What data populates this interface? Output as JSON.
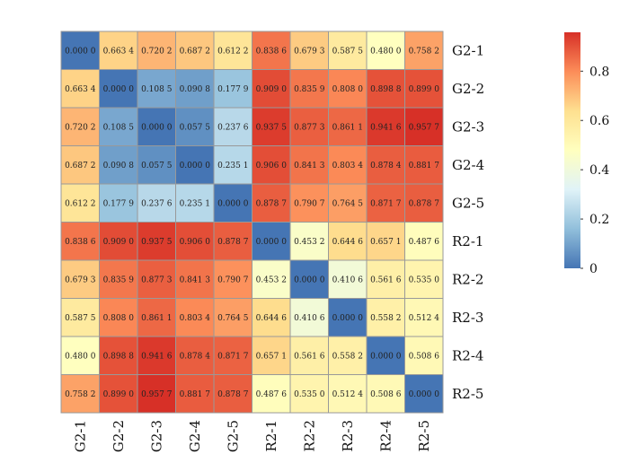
{
  "chart_data": {
    "type": "heatmap",
    "title": "",
    "xlabel": "",
    "ylabel": "",
    "rows": [
      "G2-1",
      "G2-2",
      "G2-3",
      "G2-4",
      "G2-5",
      "R2-1",
      "R2-2",
      "R2-3",
      "R2-4",
      "R2-5"
    ],
    "columns": [
      "G2-1",
      "G2-2",
      "G2-3",
      "G2-4",
      "G2-5",
      "R2-1",
      "R2-2",
      "R2-3",
      "R2-4",
      "R2-5"
    ],
    "values": [
      [
        0.0,
        0.6634,
        0.7202,
        0.6872,
        0.6122,
        0.8386,
        0.6793,
        0.5875,
        0.48,
        0.7582
      ],
      [
        0.6634,
        0.0,
        0.1085,
        0.0908,
        0.1779,
        0.909,
        0.8359,
        0.808,
        0.8988,
        0.899
      ],
      [
        0.7202,
        0.1085,
        0.0,
        0.0575,
        0.2376,
        0.9375,
        0.8773,
        0.8611,
        0.9416,
        0.9577
      ],
      [
        0.6872,
        0.0908,
        0.0575,
        0.0,
        0.2351,
        0.906,
        0.8413,
        0.8034,
        0.8784,
        0.8817
      ],
      [
        0.6122,
        0.1779,
        0.2376,
        0.2351,
        0.0,
        0.8787,
        0.7907,
        0.7645,
        0.8717,
        0.8787
      ],
      [
        0.8386,
        0.909,
        0.9375,
        0.906,
        0.8787,
        0.0,
        0.4532,
        0.6446,
        0.6571,
        0.4876
      ],
      [
        0.6793,
        0.8359,
        0.8773,
        0.8413,
        0.7907,
        0.4532,
        0.0,
        0.4106,
        0.5616,
        0.535
      ],
      [
        0.5875,
        0.808,
        0.8611,
        0.8034,
        0.7645,
        0.6446,
        0.4106,
        0.0,
        0.5582,
        0.5124
      ],
      [
        0.48,
        0.8988,
        0.9416,
        0.8784,
        0.8717,
        0.6571,
        0.5616,
        0.5582,
        0.0,
        0.5086
      ],
      [
        0.7582,
        0.899,
        0.9577,
        0.8817,
        0.8787,
        0.4876,
        0.535,
        0.5124,
        0.5086,
        0.0
      ]
    ],
    "cell_labels": [
      [
        "0.000 0",
        "0.663 4",
        "0.720 2",
        "0.687 2",
        "0.612 2",
        "0.838 6",
        "0.679 3",
        "0.587 5",
        "0.480 0",
        "0.758 2"
      ],
      [
        "0.663 4",
        "0.000 0",
        "0.108 5",
        "0.090 8",
        "0.177 9",
        "0.909 0",
        "0.835 9",
        "0.808 0",
        "0.898 8",
        "0.899 0"
      ],
      [
        "0.720 2",
        "0.108 5",
        "0.000 0",
        "0.057 5",
        "0.237 6",
        "0.937 5",
        "0.877 3",
        "0.861 1",
        "0.941 6",
        "0.957 7"
      ],
      [
        "0.687 2",
        "0.090 8",
        "0.057 5",
        "0.000 0",
        "0.235 1",
        "0.906 0",
        "0.841 3",
        "0.803 4",
        "0.878 4",
        "0.881 7"
      ],
      [
        "0.612 2",
        "0.177 9",
        "0.237 6",
        "0.235 1",
        "0.000 0",
        "0.878 7",
        "0.790 7",
        "0.764 5",
        "0.871 7",
        "0.878 7"
      ],
      [
        "0.838 6",
        "0.909 0",
        "0.937 5",
        "0.906 0",
        "0.878 7",
        "0.000 0",
        "0.453 2",
        "0.644 6",
        "0.657 1",
        "0.487 6"
      ],
      [
        "0.679 3",
        "0.835 9",
        "0.877 3",
        "0.841 3",
        "0.790 7",
        "0.453 2",
        "0.000 0",
        "0.410 6",
        "0.561 6",
        "0.535 0"
      ],
      [
        "0.587 5",
        "0.808 0",
        "0.861 1",
        "0.803 4",
        "0.764 5",
        "0.644 6",
        "0.410 6",
        "0.000 0",
        "0.558 2",
        "0.512 4"
      ],
      [
        "0.480 0",
        "0.898 8",
        "0.941 6",
        "0.878 4",
        "0.871 7",
        "0.657 1",
        "0.561 6",
        "0.558 2",
        "0.000 0",
        "0.508 6"
      ],
      [
        "0.758 2",
        "0.899 0",
        "0.957 7",
        "0.881 7",
        "0.878 7",
        "0.487 6",
        "0.535 0",
        "0.512 4",
        "0.508 6",
        "0.000 0"
      ]
    ],
    "colorbar": {
      "range": [
        0,
        0.9577
      ],
      "ticks": [
        0,
        0.2,
        0.4,
        0.6,
        0.8
      ],
      "tick_labels": [
        "0",
        "0.2",
        "0.4",
        "0.6",
        "0.8"
      ]
    },
    "colormap_stops": [
      "#4575b4",
      "#91bfdb",
      "#e0f3f8",
      "#ffffbf",
      "#fee090",
      "#fc8d59",
      "#d73027"
    ],
    "grid_color": "#999999"
  }
}
